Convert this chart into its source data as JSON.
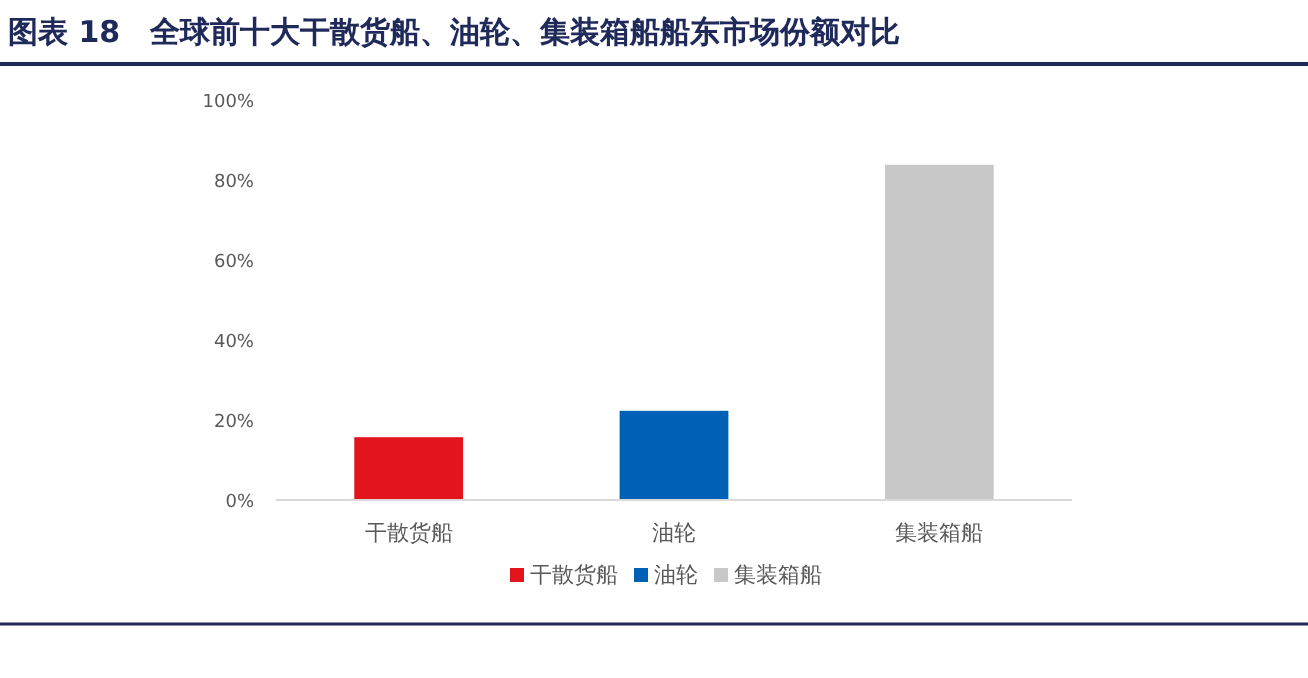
{
  "chart_data": {
    "type": "bar",
    "title": "图表 18　全球前十大干散货船、油轮、集装箱船船东市场份额对比",
    "categories": [
      "干散货船",
      "油轮",
      "集装箱船"
    ],
    "series": [
      {
        "name": "干散货船",
        "color": "#e3141d",
        "values": [
          15.7,
          null,
          null
        ]
      },
      {
        "name": "油轮",
        "color": "#0060b6",
        "values": [
          null,
          22.3,
          null
        ]
      },
      {
        "name": "集装箱船",
        "color": "#c8c8c8",
        "values": [
          null,
          null,
          83.8
        ]
      }
    ],
    "ylim": [
      0,
      100
    ],
    "yticks": [
      {
        "value": 0,
        "label": "0%"
      },
      {
        "value": 20,
        "label": "20%"
      },
      {
        "value": 40,
        "label": "40%"
      },
      {
        "value": 60,
        "label": "60%"
      },
      {
        "value": 80,
        "label": "80%"
      },
      {
        "value": 100,
        "label": "100%"
      }
    ],
    "legend": "bottom"
  }
}
